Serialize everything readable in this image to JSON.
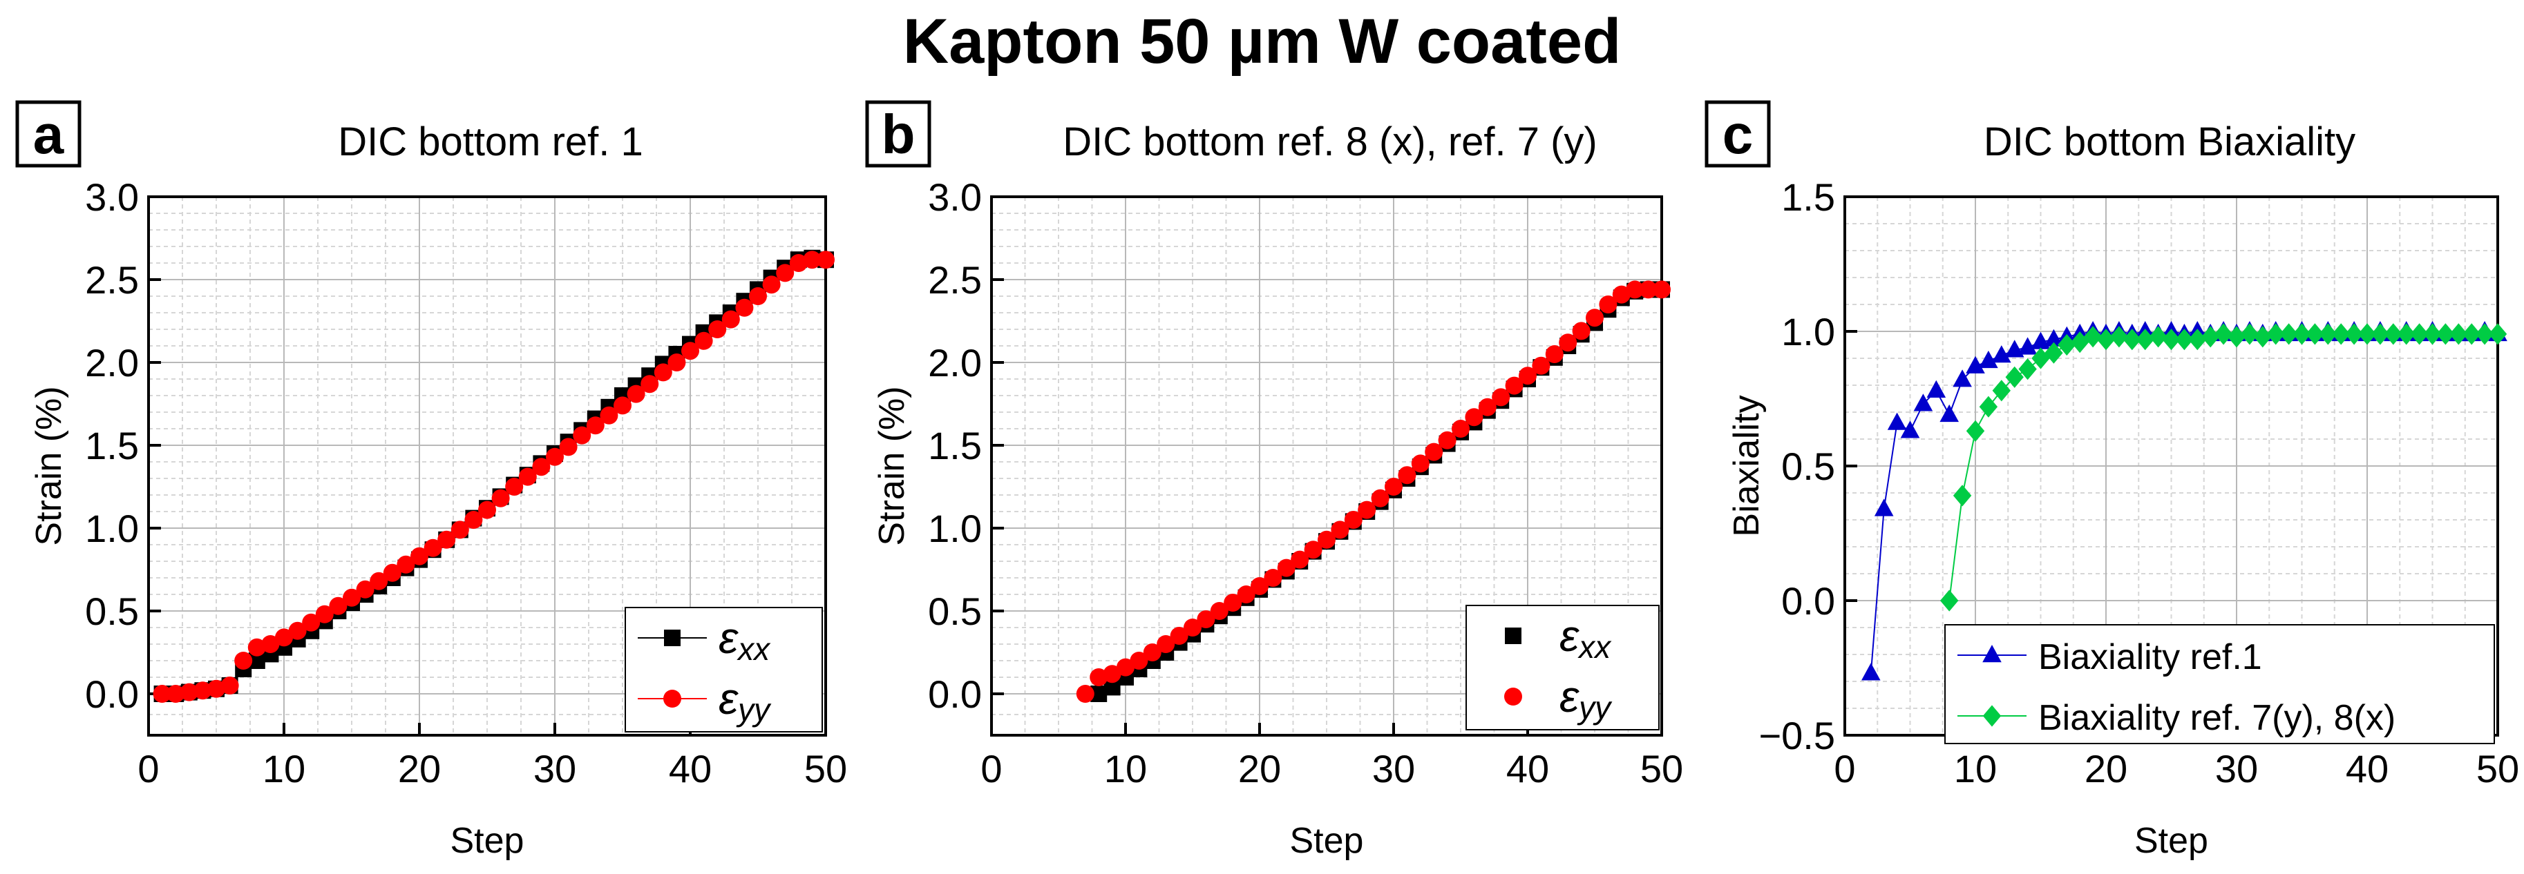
{
  "figure_title": "Kapton 50 µm W coated",
  "chart_data": [
    {
      "panel_label": "a",
      "type": "scatter",
      "title": "DIC bottom ref. 1",
      "xlabel": "Step",
      "ylabel": "Strain (%)",
      "xlim": [
        0,
        50
      ],
      "ylim": [
        -0.25,
        3.0
      ],
      "xticks": [
        "0",
        "10",
        "20",
        "30",
        "40",
        "50"
      ],
      "yticks": [
        "0.0",
        "0.5",
        "1.0",
        "1.5",
        "2.0",
        "2.5",
        "3.0"
      ],
      "xtick_values": [
        0,
        10,
        20,
        30,
        40,
        50
      ],
      "ytick_values": [
        0,
        0.5,
        1.0,
        1.5,
        2.0,
        2.5,
        3.0
      ],
      "legend_position": "bottom-right",
      "series": [
        {
          "name": "ε_xx",
          "legend_base": "ε",
          "legend_sub": "xx",
          "color": "#000000",
          "marker": "square",
          "x": [
            1,
            2,
            3,
            4,
            5,
            6,
            7,
            8,
            9,
            10,
            11,
            12,
            13,
            14,
            15,
            16,
            17,
            18,
            19,
            20,
            21,
            22,
            23,
            24,
            25,
            26,
            27,
            28,
            29,
            30,
            31,
            32,
            33,
            34,
            35,
            36,
            37,
            38,
            39,
            40,
            41,
            42,
            43,
            44,
            45,
            46,
            47,
            48,
            49,
            50
          ],
          "y": [
            0.0,
            0.0,
            0.01,
            0.02,
            0.03,
            0.05,
            0.15,
            0.2,
            0.24,
            0.28,
            0.33,
            0.38,
            0.44,
            0.5,
            0.55,
            0.6,
            0.65,
            0.7,
            0.76,
            0.81,
            0.87,
            0.93,
            0.99,
            1.06,
            1.12,
            1.19,
            1.26,
            1.32,
            1.39,
            1.45,
            1.52,
            1.59,
            1.66,
            1.73,
            1.8,
            1.86,
            1.92,
            1.99,
            2.05,
            2.11,
            2.18,
            2.24,
            2.3,
            2.37,
            2.44,
            2.51,
            2.57,
            2.62,
            2.63,
            2.62
          ]
        },
        {
          "name": "ε_yy",
          "legend_base": "ε",
          "legend_sub": "yy",
          "color": "#ff0000",
          "marker": "circle",
          "x": [
            1,
            2,
            3,
            4,
            5,
            6,
            7,
            8,
            9,
            10,
            11,
            12,
            13,
            14,
            15,
            16,
            17,
            18,
            19,
            20,
            21,
            22,
            23,
            24,
            25,
            26,
            27,
            28,
            29,
            30,
            31,
            32,
            33,
            34,
            35,
            36,
            37,
            38,
            39,
            40,
            41,
            42,
            43,
            44,
            45,
            46,
            47,
            48,
            49,
            50
          ],
          "y": [
            0.0,
            0.0,
            0.01,
            0.02,
            0.03,
            0.05,
            0.2,
            0.28,
            0.3,
            0.34,
            0.38,
            0.43,
            0.48,
            0.53,
            0.58,
            0.63,
            0.68,
            0.73,
            0.78,
            0.83,
            0.88,
            0.93,
            0.99,
            1.05,
            1.11,
            1.18,
            1.25,
            1.31,
            1.37,
            1.43,
            1.49,
            1.56,
            1.62,
            1.68,
            1.74,
            1.81,
            1.87,
            1.94,
            2.0,
            2.07,
            2.13,
            2.2,
            2.26,
            2.33,
            2.4,
            2.47,
            2.54,
            2.6,
            2.62,
            2.62
          ]
        }
      ]
    },
    {
      "panel_label": "b",
      "type": "scatter",
      "title": "DIC bottom ref. 8 (x), ref. 7 (y)",
      "xlabel": "Step",
      "ylabel": "Strain (%)",
      "xlim": [
        0,
        50
      ],
      "ylim": [
        -0.25,
        3.0
      ],
      "xticks": [
        "0",
        "10",
        "20",
        "30",
        "40",
        "50"
      ],
      "yticks": [
        "0.0",
        "0.5",
        "1.0",
        "1.5",
        "2.0",
        "2.5",
        "3.0"
      ],
      "xtick_values": [
        0,
        10,
        20,
        30,
        40,
        50
      ],
      "ytick_values": [
        0,
        0.5,
        1.0,
        1.5,
        2.0,
        2.5,
        3.0
      ],
      "legend_position": "bottom-right",
      "series": [
        {
          "name": "ε_xx",
          "legend_base": "ε",
          "legend_sub": "xx",
          "color": "#000000",
          "marker": "square",
          "x": [
            8,
            9,
            10,
            11,
            12,
            13,
            14,
            15,
            16,
            17,
            18,
            19,
            20,
            21,
            22,
            23,
            24,
            25,
            26,
            27,
            28,
            29,
            30,
            31,
            32,
            33,
            34,
            35,
            36,
            37,
            38,
            39,
            40,
            41,
            42,
            43,
            44,
            45,
            46,
            47,
            48,
            49,
            50
          ],
          "y": [
            0.0,
            0.04,
            0.1,
            0.15,
            0.2,
            0.25,
            0.31,
            0.36,
            0.42,
            0.47,
            0.52,
            0.58,
            0.63,
            0.69,
            0.74,
            0.8,
            0.86,
            0.92,
            0.98,
            1.04,
            1.1,
            1.16,
            1.23,
            1.3,
            1.37,
            1.44,
            1.51,
            1.58,
            1.64,
            1.71,
            1.77,
            1.84,
            1.9,
            1.97,
            2.03,
            2.1,
            2.17,
            2.24,
            2.32,
            2.39,
            2.43,
            2.44,
            2.44
          ]
        },
        {
          "name": "ε_yy",
          "legend_base": "ε",
          "legend_sub": "yy",
          "color": "#ff0000",
          "marker": "circle",
          "x": [
            7,
            8,
            9,
            10,
            11,
            12,
            13,
            14,
            15,
            16,
            17,
            18,
            19,
            20,
            21,
            22,
            23,
            24,
            25,
            26,
            27,
            28,
            29,
            30,
            31,
            32,
            33,
            34,
            35,
            36,
            37,
            38,
            39,
            40,
            41,
            42,
            43,
            44,
            45,
            46,
            47,
            48,
            49,
            50
          ],
          "y": [
            0.0,
            0.1,
            0.12,
            0.16,
            0.2,
            0.25,
            0.3,
            0.35,
            0.4,
            0.45,
            0.5,
            0.55,
            0.6,
            0.65,
            0.7,
            0.76,
            0.81,
            0.87,
            0.93,
            0.99,
            1.05,
            1.11,
            1.18,
            1.25,
            1.32,
            1.39,
            1.46,
            1.53,
            1.6,
            1.67,
            1.73,
            1.79,
            1.86,
            1.92,
            1.98,
            2.05,
            2.12,
            2.19,
            2.27,
            2.35,
            2.41,
            2.44,
            2.44,
            2.44
          ]
        }
      ]
    },
    {
      "panel_label": "c",
      "type": "line",
      "title": "DIC bottom Biaxiality",
      "xlabel": "Step",
      "ylabel": "Biaxiality",
      "xlim": [
        0,
        50
      ],
      "ylim": [
        -0.5,
        1.5
      ],
      "xticks": [
        "0",
        "10",
        "20",
        "30",
        "40",
        "50"
      ],
      "yticks": [
        "−0.5",
        "0.0",
        "0.5",
        "1.0",
        "1.5"
      ],
      "xtick_values": [
        0,
        10,
        20,
        30,
        40,
        50
      ],
      "ytick_values": [
        -0.5,
        0.0,
        0.5,
        1.0,
        1.5
      ],
      "legend_position": "bottom-right",
      "series": [
        {
          "name": "Biaxiality ref.1",
          "color": "#0000cc",
          "marker": "triangle",
          "x": [
            2,
            3,
            4,
            5,
            6,
            7,
            8,
            9,
            10,
            11,
            12,
            13,
            14,
            15,
            16,
            17,
            18,
            19,
            20,
            21,
            22,
            23,
            24,
            25,
            26,
            27,
            28,
            29,
            30,
            31,
            32,
            33,
            34,
            35,
            36,
            37,
            38,
            39,
            40,
            41,
            42,
            43,
            44,
            45,
            46,
            47,
            48,
            49,
            50
          ],
          "y": [
            -0.27,
            0.34,
            0.66,
            0.63,
            0.73,
            0.78,
            0.69,
            0.82,
            0.87,
            0.89,
            0.91,
            0.93,
            0.94,
            0.96,
            0.97,
            0.98,
            0.99,
            1.0,
            0.99,
            1.0,
            0.99,
            1.0,
            0.99,
            1.0,
            0.99,
            1.0,
            0.99,
            1.0,
            0.99,
            1.0,
            0.99,
            1.0,
            0.99,
            1.0,
            0.99,
            1.0,
            0.99,
            1.0,
            0.99,
            1.0,
            0.99,
            1.0,
            0.99,
            1.0,
            0.99,
            0.99,
            0.99,
            1.0,
            0.99
          ]
        },
        {
          "name": "Biaxiality ref. 7(y), 8(x)",
          "color": "#00cc44",
          "marker": "diamond",
          "x": [
            8,
            9,
            10,
            11,
            12,
            13,
            14,
            15,
            16,
            17,
            18,
            19,
            20,
            21,
            22,
            23,
            24,
            25,
            26,
            27,
            28,
            29,
            30,
            31,
            32,
            33,
            34,
            35,
            36,
            37,
            38,
            39,
            40,
            41,
            42,
            43,
            44,
            45,
            46,
            47,
            48,
            49,
            50
          ],
          "y": [
            0.0,
            0.39,
            0.63,
            0.72,
            0.78,
            0.83,
            0.86,
            0.9,
            0.92,
            0.95,
            0.96,
            0.98,
            0.97,
            0.98,
            0.97,
            0.97,
            0.98,
            0.97,
            0.97,
            0.97,
            0.98,
            0.99,
            0.98,
            0.99,
            0.98,
            0.99,
            0.99,
            0.99,
            0.99,
            0.99,
            0.99,
            0.99,
            0.99,
            0.99,
            0.99,
            0.99,
            0.99,
            0.99,
            0.99,
            0.99,
            0.99,
            0.99,
            0.99
          ]
        }
      ]
    }
  ]
}
